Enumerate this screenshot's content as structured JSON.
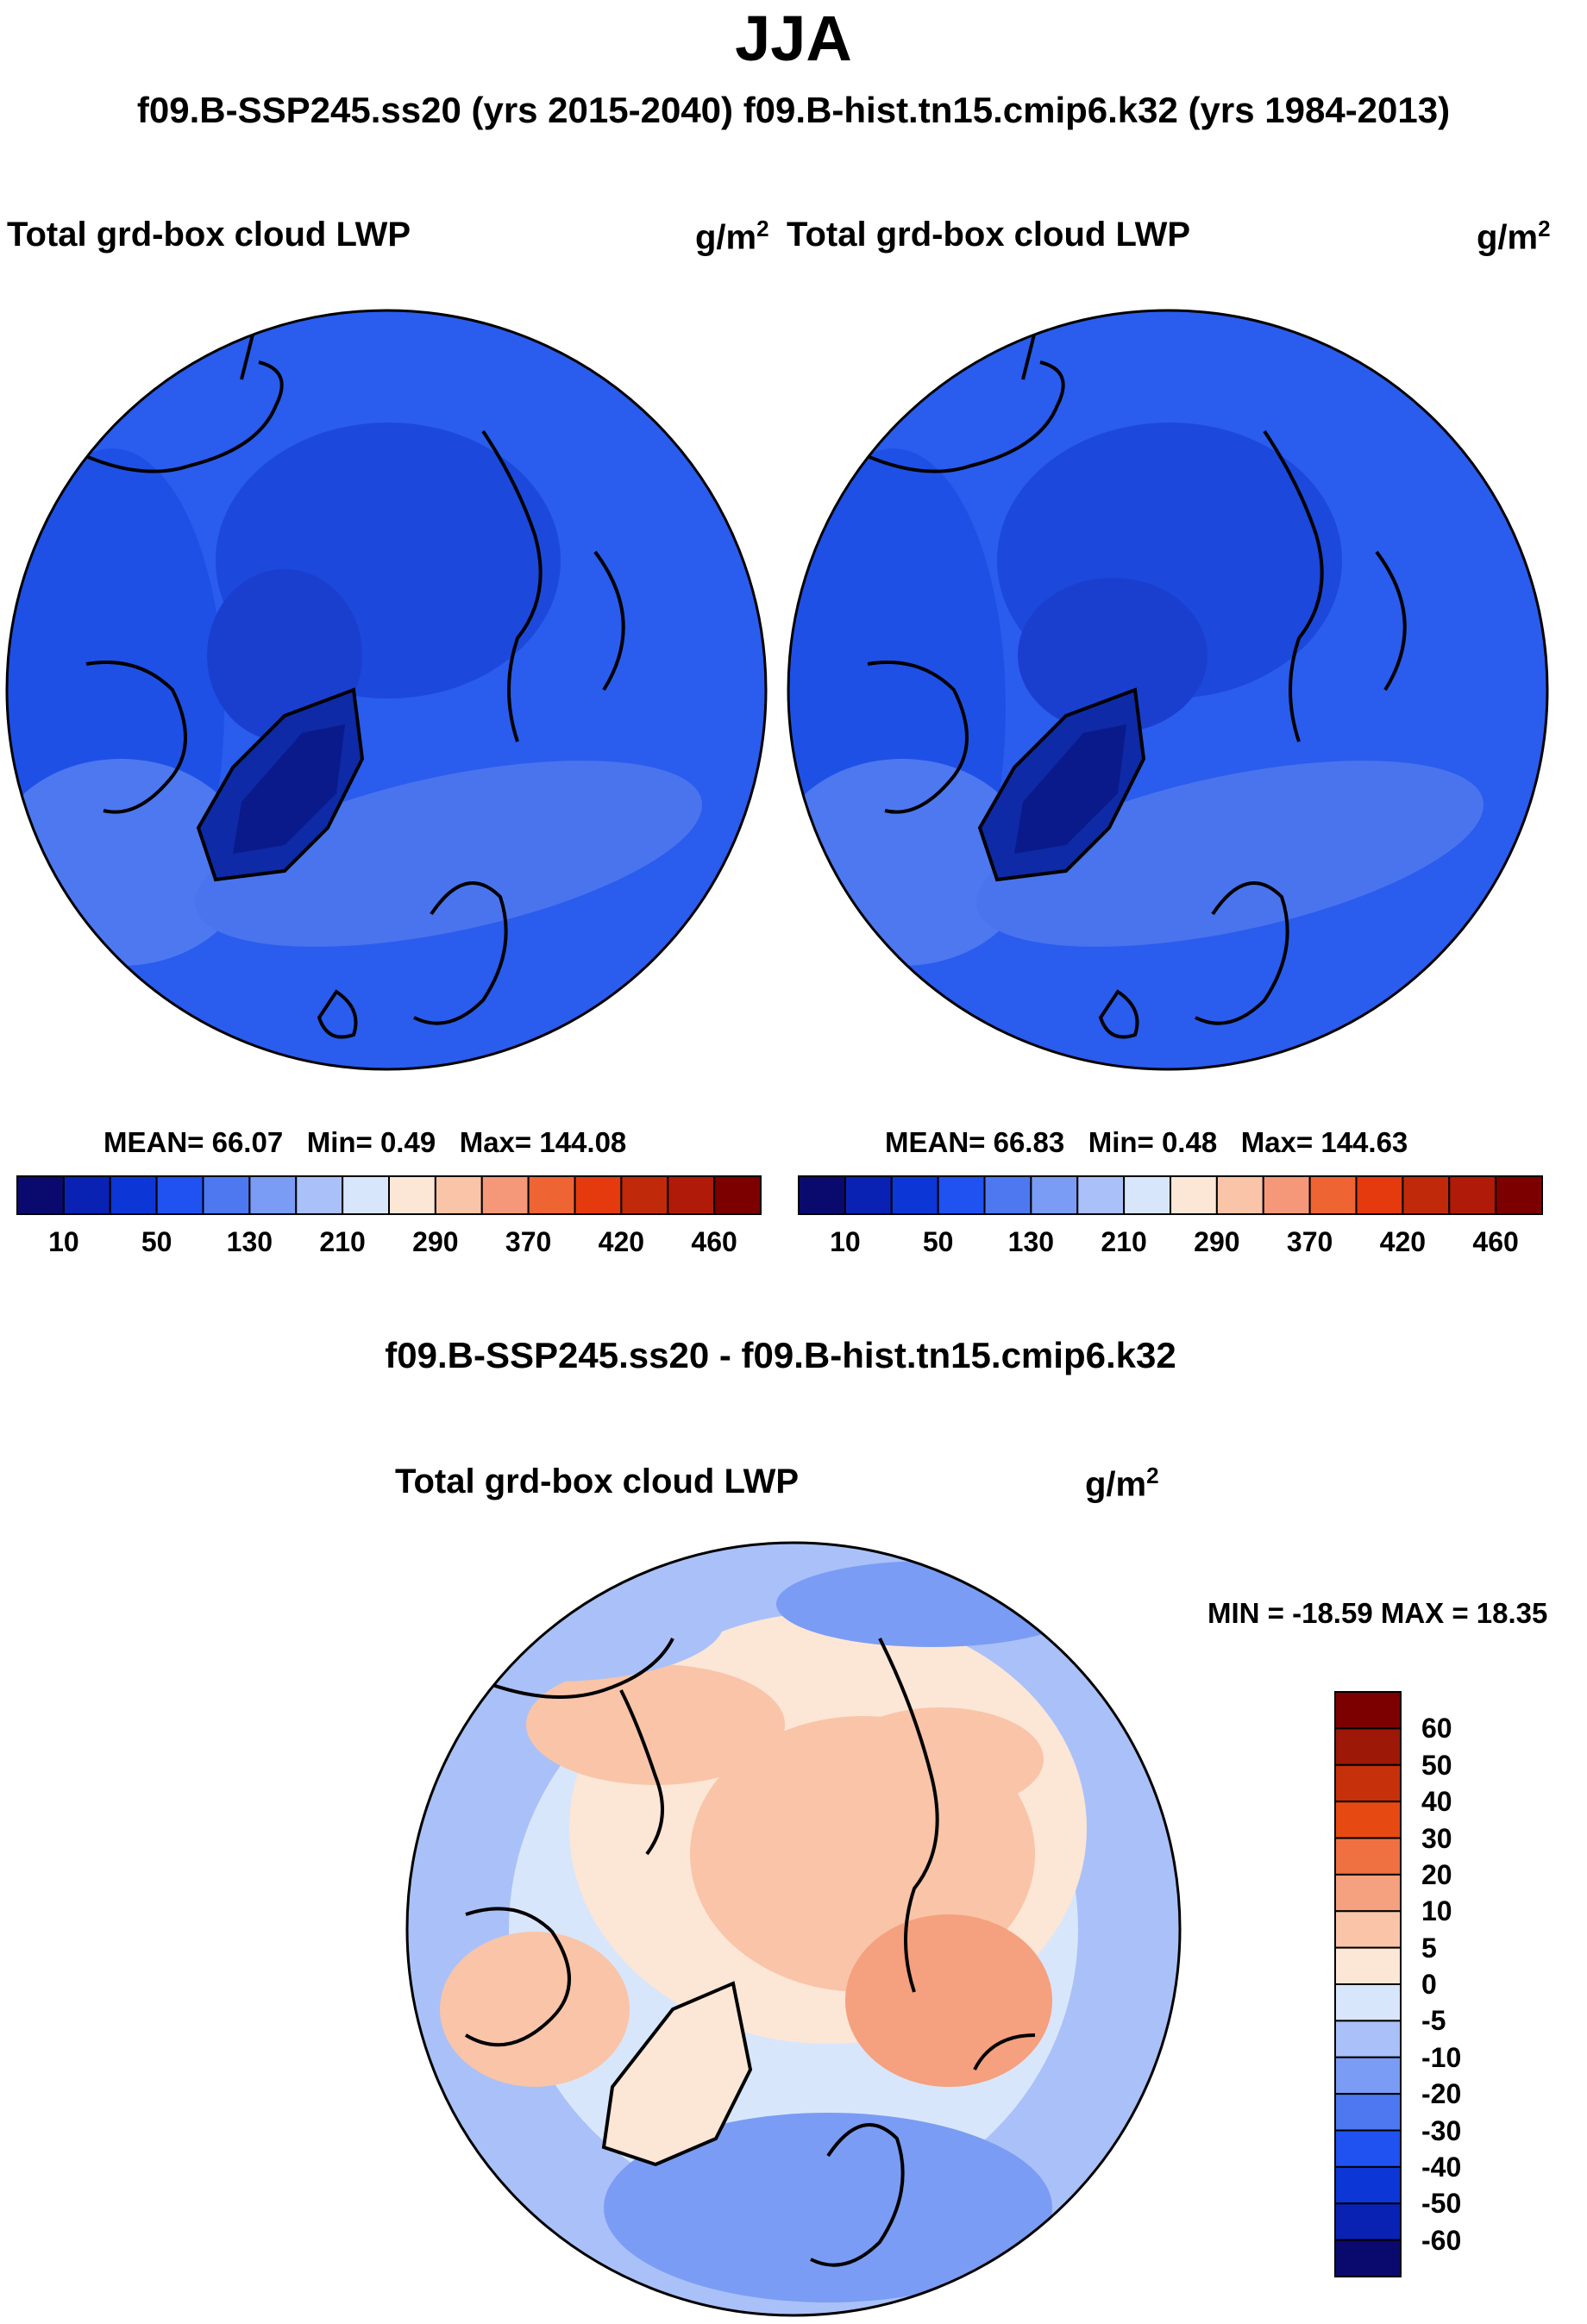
{
  "title": "JJA",
  "subtitle": "f09.B-SSP245.ss20 (yrs 2015-2040)  f09.B-hist.tn15.cmip6.k32 (yrs 1984-2013)",
  "panels": [
    {
      "left_label": "Total grd-box cloud LWP",
      "units_base": "g/m",
      "units_exp": "2",
      "stats": {
        "mean": "MEAN=  66.07",
        "min": "Min=    0.49",
        "max": "Max= 144.08"
      }
    },
    {
      "left_label": "Total grd-box cloud LWP",
      "units_base": "g/m",
      "units_exp": "2",
      "stats": {
        "mean": "MEAN=  66.83",
        "min": "Min=    0.48",
        "max": "Max= 144.63"
      }
    }
  ],
  "diff": {
    "title": "f09.B-SSP245.ss20 - f09.B-hist.tn15.cmip6.k32",
    "left_label": "Total grd-box cloud LWP",
    "units_base": "g/m",
    "units_exp": "2",
    "minmax": "MIN = -18.59 MAX =  18.35"
  },
  "colors": {
    "seq": [
      "#0a0a6e",
      "#0a22b4",
      "#0c37d6",
      "#1f52f0",
      "#4d78f0",
      "#7a9cf4",
      "#a9c1f8",
      "#d8e6fb",
      "#fce6d6",
      "#f9c4a8",
      "#f5987a",
      "#ef6433",
      "#e43a0e",
      "#c02a0a",
      "#b01a08",
      "#7c0000"
    ],
    "div": [
      "#0a0a6e",
      "#0a22b4",
      "#0c37d6",
      "#1f52f0",
      "#4d78f0",
      "#7a9cf4",
      "#a9c1f8",
      "#d8e6fb",
      "#fce6d6",
      "#f9c4a8",
      "#f5a07e",
      "#ef7040",
      "#e64a12",
      "#c6300a",
      "#9e1808",
      "#7c0000"
    ]
  },
  "chart_data": [
    {
      "type": "heatmap",
      "name": "SSP245 JJA cloud LWP (north polar stereographic)",
      "field": "Total grd-box cloud LWP",
      "units": "g/m^2",
      "mean": 66.07,
      "min": 0.49,
      "max": 144.08,
      "colorbar_levels": [
        10,
        50,
        130,
        210,
        290,
        370,
        420,
        460
      ],
      "colorbar_bins": 16
    },
    {
      "type": "heatmap",
      "name": "Historical JJA cloud LWP (north polar stereographic)",
      "field": "Total grd-box cloud LWP",
      "units": "g/m^2",
      "mean": 66.83,
      "min": 0.48,
      "max": 144.63,
      "colorbar_levels": [
        10,
        50,
        130,
        210,
        290,
        370,
        420,
        460
      ],
      "colorbar_bins": 16
    },
    {
      "type": "heatmap",
      "name": "Difference SSP245 minus historical",
      "field": "Total grd-box cloud LWP",
      "units": "g/m^2",
      "min": -18.59,
      "max": 18.35,
      "colorbar_levels": [
        60,
        50,
        40,
        30,
        20,
        10,
        5,
        0,
        -5,
        -10,
        -20,
        -30,
        -40,
        -50,
        -60
      ],
      "colorbar_bins": 16
    }
  ]
}
